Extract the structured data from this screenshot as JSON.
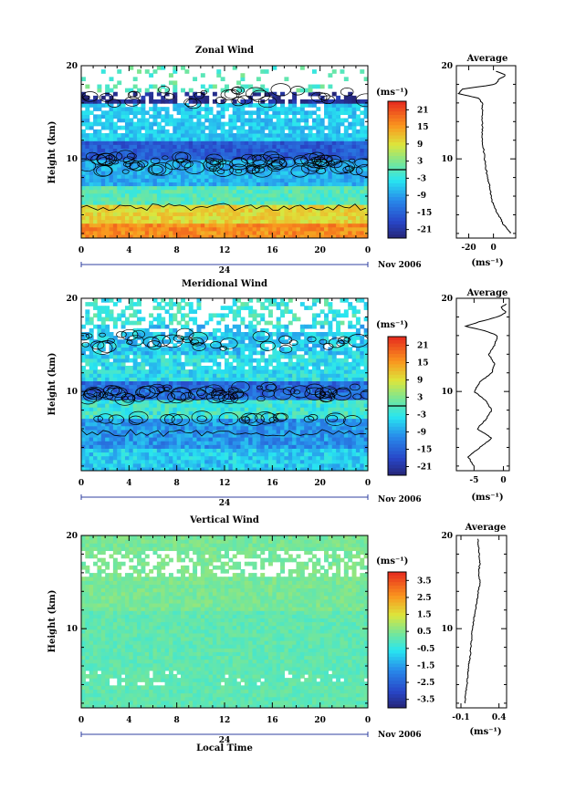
{
  "chart_data": [
    {
      "type": "heatmap",
      "title": "Zonal Wind",
      "ylabel": "Height (km)",
      "date_label": "Nov 2006",
      "day_label": "24",
      "xlim": [
        0,
        24
      ],
      "ylim": [
        1.5,
        20
      ],
      "xticks": [
        "0",
        "4",
        "8",
        "12",
        "16",
        "20",
        "0"
      ],
      "yticks": [
        "10",
        "20"
      ],
      "colorbar": {
        "unit": "(ms⁻¹)",
        "ticks": [
          "21",
          "15",
          "9",
          "3",
          "-3",
          "-9",
          "-15",
          "-21"
        ],
        "range": [
          -24,
          24
        ]
      },
      "profile": {
        "title": "Average",
        "xlabel": "(ms⁻¹)",
        "xticks": [
          "-20",
          "0"
        ],
        "xlim": [
          -30,
          18
        ],
        "heights": [
          2,
          3,
          4,
          5,
          6,
          7,
          8,
          9,
          10,
          11,
          12,
          13,
          14,
          15,
          16,
          16.5,
          17,
          17.5,
          18,
          18.5,
          19,
          19.5
        ],
        "values": [
          14,
          8,
          4,
          0,
          -2,
          -3,
          -5,
          -6,
          -7,
          -8,
          -9,
          -9,
          -9,
          -9,
          -9,
          -12,
          -28,
          -25,
          2,
          4,
          10,
          0
        ]
      }
    },
    {
      "type": "heatmap",
      "title": "Meridional Wind",
      "ylabel": "Height (km)",
      "date_label": "Nov 2006",
      "day_label": "24",
      "xlim": [
        0,
        24
      ],
      "ylim": [
        1.5,
        20
      ],
      "xticks": [
        "0",
        "4",
        "8",
        "12",
        "16",
        "20",
        "0"
      ],
      "yticks": [
        "10",
        "20"
      ],
      "colorbar": {
        "unit": "(ms⁻¹)",
        "ticks": [
          "21",
          "15",
          "9",
          "3",
          "-3",
          "-9",
          "-15",
          "-21"
        ],
        "range": [
          -24,
          24
        ]
      },
      "profile": {
        "title": "Average",
        "xlabel": "(ms⁻¹)",
        "xticks": [
          "-5",
          "0"
        ],
        "xlim": [
          -8,
          1
        ],
        "heights": [
          2,
          3,
          4,
          5,
          6,
          7,
          8,
          9,
          10,
          11,
          12,
          13,
          14,
          15,
          16,
          16.5,
          17,
          17.5,
          18,
          18.5,
          19,
          19.5
        ],
        "values": [
          -5,
          -6,
          -4,
          -2,
          -4.5,
          -3,
          -2,
          -3,
          -5,
          -4,
          -2,
          -1.5,
          -2.5,
          -1.5,
          -1,
          -3,
          -6.5,
          -4,
          -1,
          0.5,
          -0.5,
          0.8
        ]
      }
    },
    {
      "type": "heatmap",
      "title": "Vertical Wind",
      "ylabel": "Height (km)",
      "xlabel": "Local Time",
      "date_label": "Nov 2006",
      "day_label": "24",
      "xlim": [
        0,
        24
      ],
      "ylim": [
        1.5,
        20
      ],
      "xticks": [
        "0",
        "4",
        "8",
        "12",
        "16",
        "20",
        "0"
      ],
      "yticks": [
        "10",
        "20"
      ],
      "colorbar": {
        "unit": "(ms⁻¹)",
        "ticks": [
          "3.5",
          "2.5",
          "1.5",
          "0.5",
          "-0.5",
          "-1.5",
          "-2.5",
          "-3.5"
        ],
        "range": [
          -4,
          4
        ]
      },
      "profile": {
        "title": "Average",
        "xlabel": "(ms⁻¹)",
        "xticks": [
          "-0.1",
          "0.4"
        ],
        "xlim": [
          -0.16,
          0.5
        ],
        "heights": [
          2,
          3,
          4,
          5,
          6,
          7,
          8,
          9,
          10,
          11,
          12,
          13,
          14,
          15,
          16,
          17,
          18,
          19,
          19.7
        ],
        "values": [
          -0.05,
          -0.04,
          -0.02,
          -0.01,
          0.0,
          0.02,
          0.03,
          0.04,
          0.05,
          0.07,
          0.09,
          0.11,
          0.13,
          0.15,
          0.13,
          0.15,
          0.14,
          0.13,
          0.12
        ]
      }
    }
  ]
}
